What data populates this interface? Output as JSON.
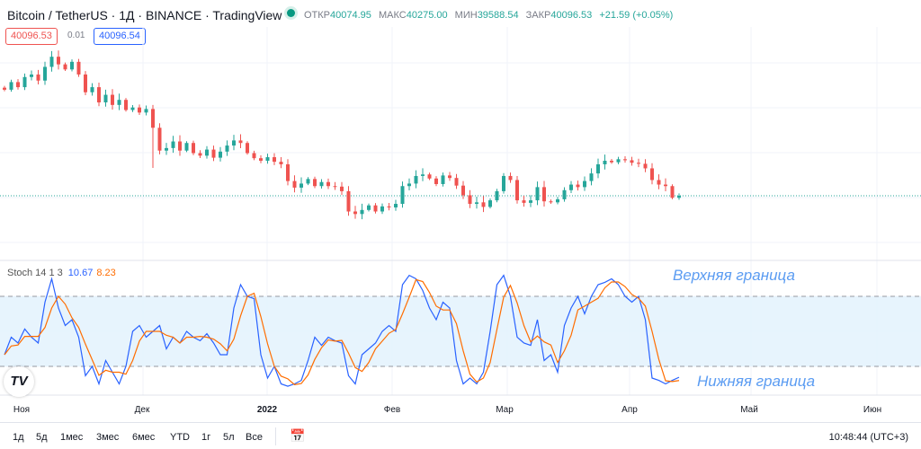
{
  "header": {
    "title": "Bitcoin / TetherUS · 1Д · BINANCE · TradingView",
    "ohlc": [
      {
        "label": "ОТКР",
        "value": "40074.95"
      },
      {
        "label": "МАКС",
        "value": "40275.00"
      },
      {
        "label": "МИН",
        "value": "39588.54"
      },
      {
        "label": "ЗАКР",
        "value": "40096.53"
      }
    ],
    "change": "+21.59 (+0.05%)",
    "sell_price": "40096.53",
    "spread": "0.01",
    "buy_price": "40096.54"
  },
  "stoch": {
    "name": "Stoch 14 1 3",
    "k_value": "10.67",
    "d_value": "8.23",
    "upper_label": "Верхняя граница",
    "lower_label": "Нижняя граница"
  },
  "logo": "TV",
  "time_axis": [
    "Ноя",
    "Дек",
    "2022",
    "Фев",
    "Мар",
    "Апр",
    "Май",
    "Июн"
  ],
  "bottom": {
    "ranges": [
      "1д",
      "5д",
      "1мес",
      "3мес",
      "6мес",
      "YTD",
      "1г",
      "5л",
      "Все"
    ],
    "clock": "10:48:44 (UTC+3)"
  },
  "colors": {
    "up": "#26a69a",
    "down": "#ef5350",
    "k": "#2962ff",
    "d": "#ff6d00",
    "band": "#e3f2fd"
  },
  "chart_data": [
    {
      "type": "candlestick",
      "title": "Bitcoin / TetherUS · 1Д · BINANCE",
      "last_price": 40096.53,
      "close": [
        61000,
        62500,
        61500,
        63500,
        64000,
        62800,
        65500,
        67500,
        66000,
        65000,
        66500,
        64000,
        60500,
        61500,
        58500,
        60000,
        58000,
        59000,
        57000,
        57500,
        56500,
        57200,
        53500,
        49000,
        49500,
        50800,
        49000,
        50500,
        48500,
        48000,
        49200,
        47600,
        48800,
        50000,
        51000,
        50500,
        48500,
        47500,
        47000,
        47700,
        46800,
        46300,
        43000,
        41700,
        42500,
        43400,
        42000,
        42800,
        42000,
        41900,
        41000,
        37000,
        36500,
        37300,
        38200,
        37000,
        38000,
        37800,
        38500,
        42000,
        42500,
        44000,
        44300,
        43500,
        42400,
        44100,
        43600,
        42100,
        40200,
        38500,
        38800,
        37900,
        39200,
        41000,
        44000,
        43200,
        39200,
        38700,
        39200,
        41800,
        39000,
        38800,
        39400,
        41200,
        42300,
        41800,
        43000,
        44500,
        46300,
        47000,
        46700,
        47300,
        47100,
        46600,
        46400,
        45500,
        43200,
        42300,
        42000,
        39700,
        40096
      ]
    },
    {
      "type": "line",
      "title": "Stoch 14 1 3",
      "ylim": [
        0,
        100
      ],
      "bands": [
        20,
        80
      ],
      "d_period": 3,
      "series": [
        {
          "name": "%K",
          "values": [
            30,
            45,
            40,
            52,
            45,
            40,
            75,
            95,
            70,
            55,
            60,
            45,
            12,
            20,
            5,
            25,
            15,
            5,
            20,
            50,
            55,
            45,
            50,
            55,
            35,
            45,
            40,
            50,
            45,
            42,
            48,
            40,
            30,
            30,
            70,
            90,
            80,
            78,
            30,
            10,
            20,
            5,
            3,
            5,
            8,
            25,
            45,
            38,
            45,
            42,
            40,
            12,
            5,
            30,
            35,
            40,
            50,
            55,
            50,
            90,
            98,
            95,
            85,
            70,
            60,
            75,
            70,
            25,
            5,
            10,
            5,
            15,
            50,
            90,
            98,
            80,
            45,
            40,
            38,
            60,
            25,
            30,
            15,
            55,
            70,
            80,
            65,
            80,
            90,
            92,
            95,
            90,
            80,
            75,
            80,
            60,
            10,
            8,
            5,
            8,
            10.67
          ]
        }
      ]
    }
  ]
}
